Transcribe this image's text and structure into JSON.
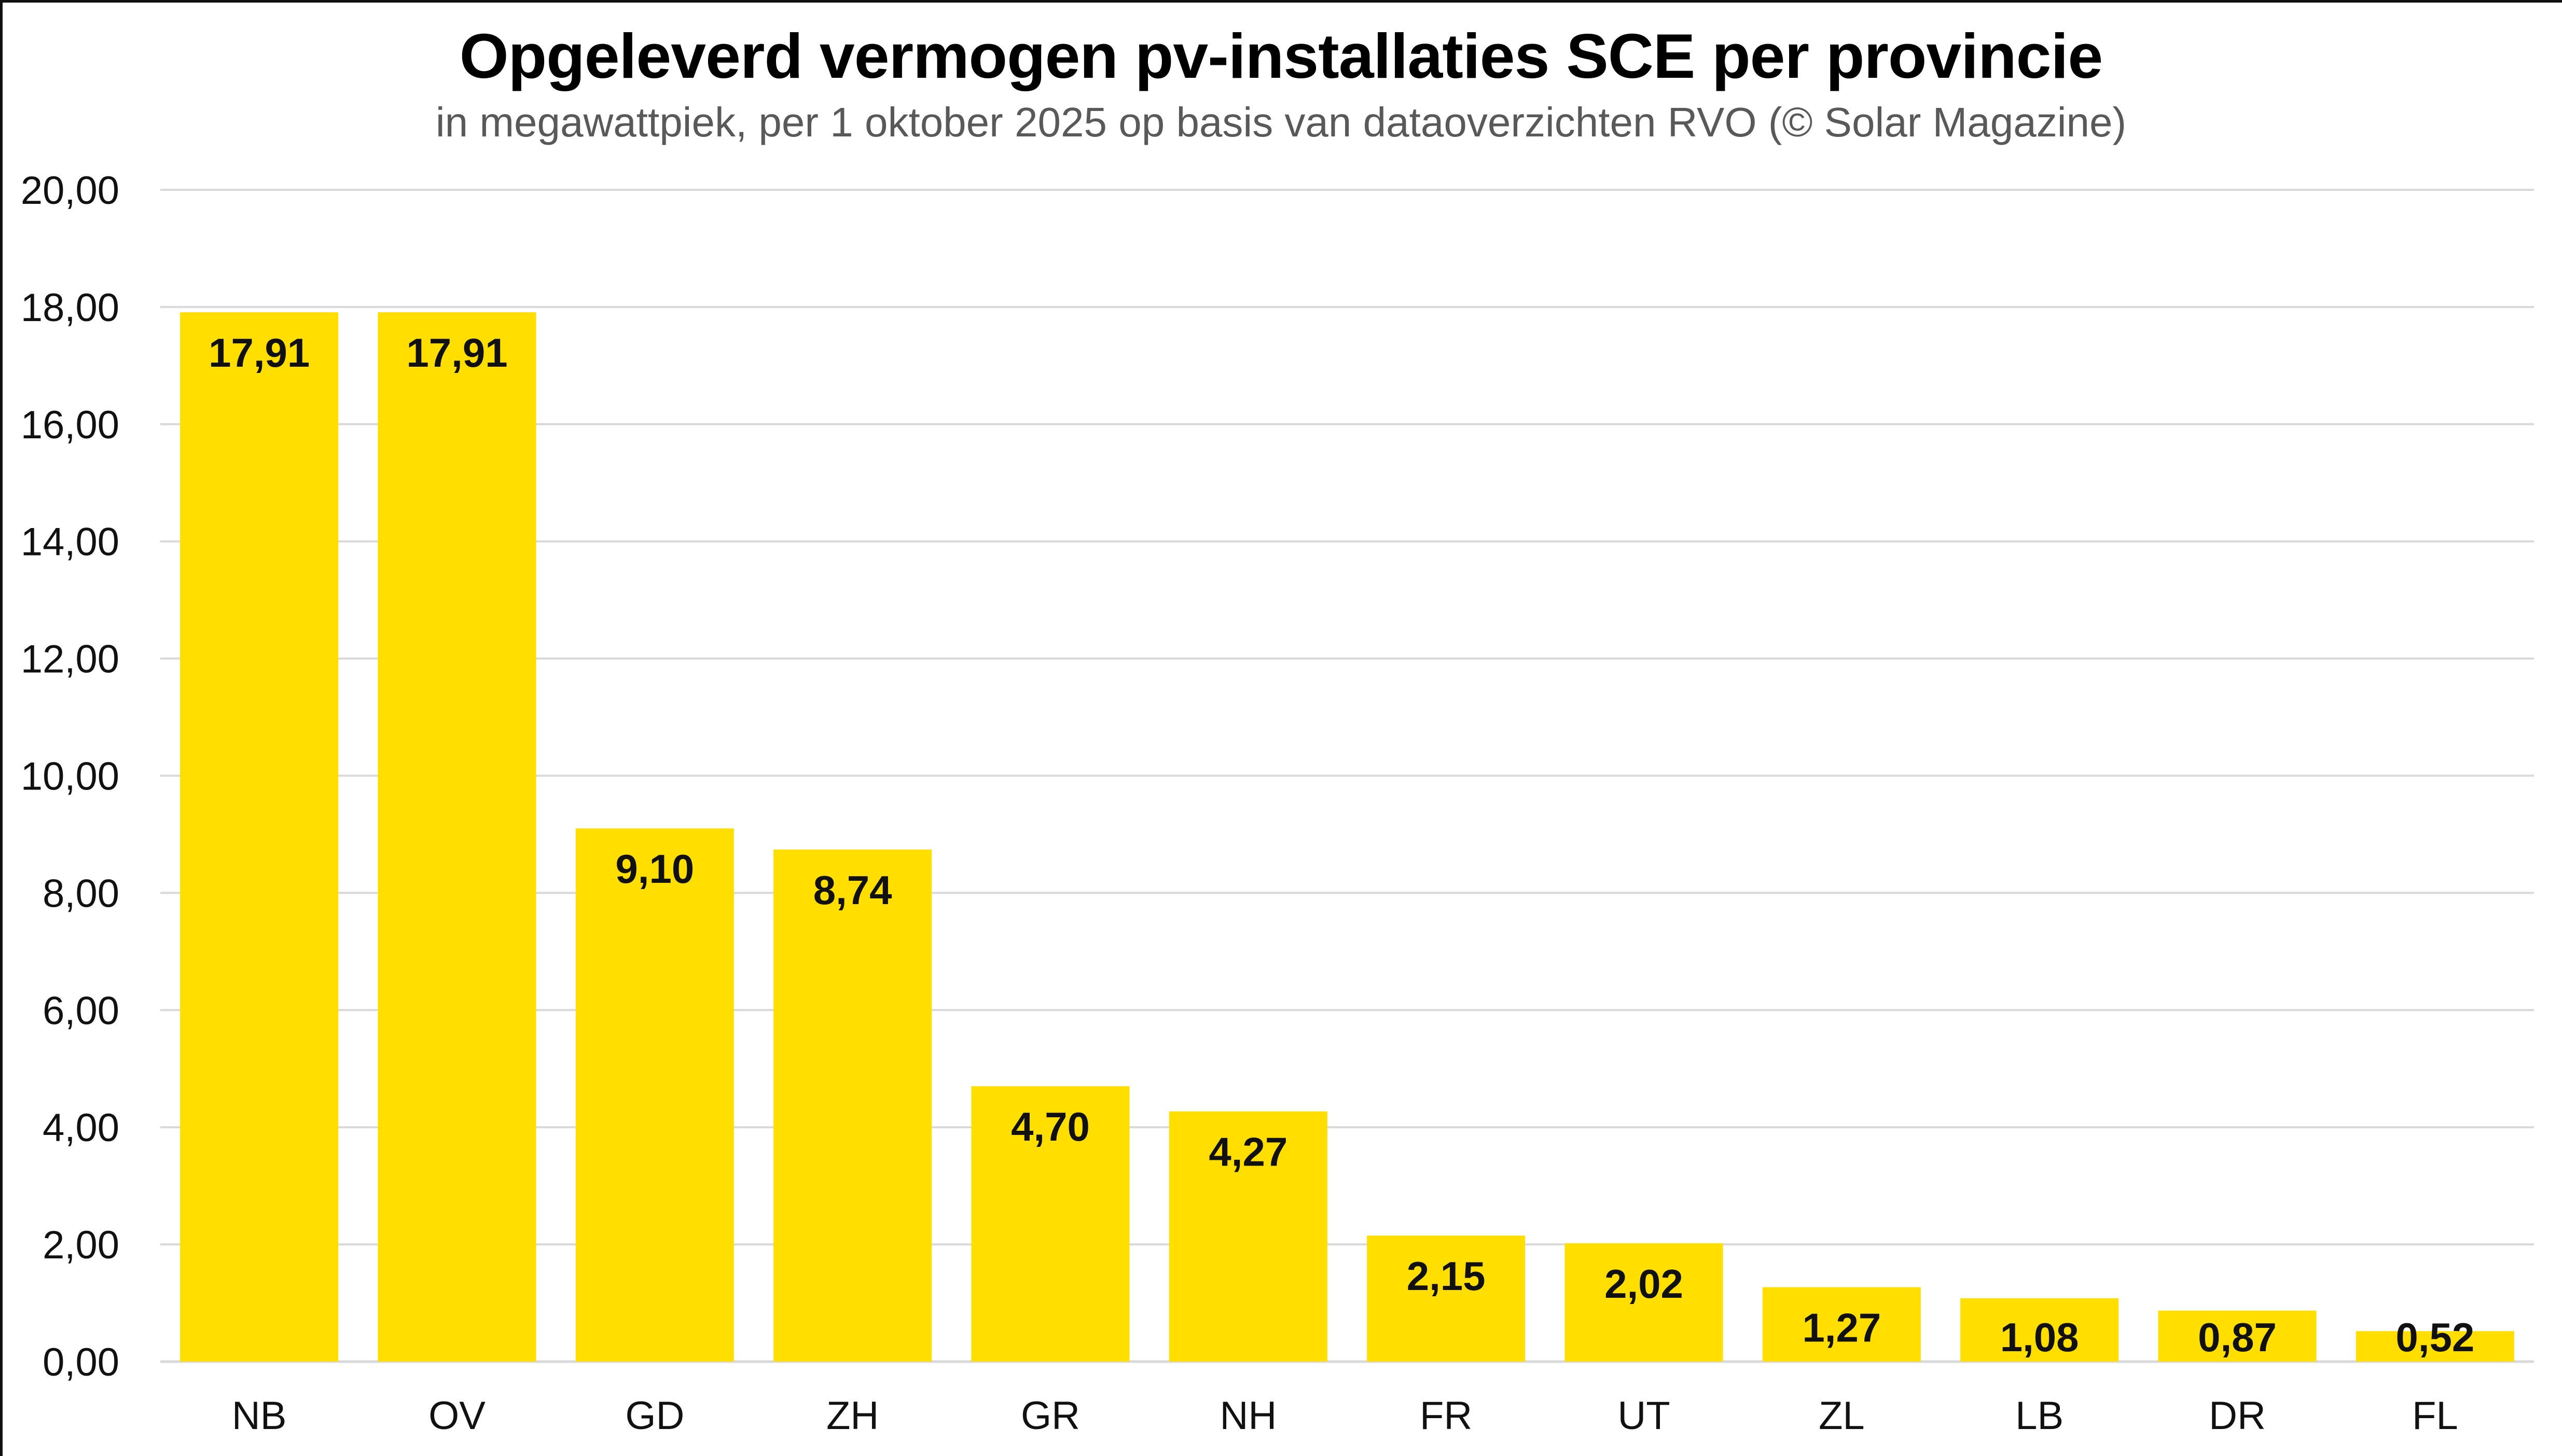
{
  "chart_data": {
    "type": "bar",
    "title": "Opgeleverd vermogen pv-installaties SCE per provincie",
    "subtitle": "in megawattpiek, per 1 oktober 2025 op basis van dataoverzichten RVO (© Solar Magazine)",
    "xlabel": "",
    "ylabel": "",
    "categories": [
      "NB",
      "OV",
      "GD",
      "ZH",
      "GR",
      "NH",
      "FR",
      "UT",
      "ZL",
      "LB",
      "DR",
      "FL"
    ],
    "values": [
      17.91,
      17.91,
      9.1,
      8.74,
      4.7,
      4.27,
      2.15,
      2.02,
      1.27,
      1.08,
      0.87,
      0.52
    ],
    "data_labels": [
      "17,91",
      "17,91",
      "9,10",
      "8,74",
      "4,70",
      "4,27",
      "2,15",
      "2,02",
      "1,27",
      "1,08",
      "0,87",
      "0,52"
    ],
    "ylim": [
      0,
      20
    ],
    "yticks": [
      0,
      2,
      4,
      6,
      8,
      10,
      12,
      14,
      16,
      18,
      20
    ],
    "ytick_labels": [
      "0,00",
      "2,00",
      "4,00",
      "6,00",
      "8,00",
      "10,00",
      "12,00",
      "14,00",
      "16,00",
      "18,00",
      "20,00"
    ],
    "grid": true,
    "legend": "none",
    "colors": {
      "bar": "#FFDE00",
      "grid": "#D9D9D9",
      "text": "#111111",
      "subtitle": "#595959"
    }
  }
}
